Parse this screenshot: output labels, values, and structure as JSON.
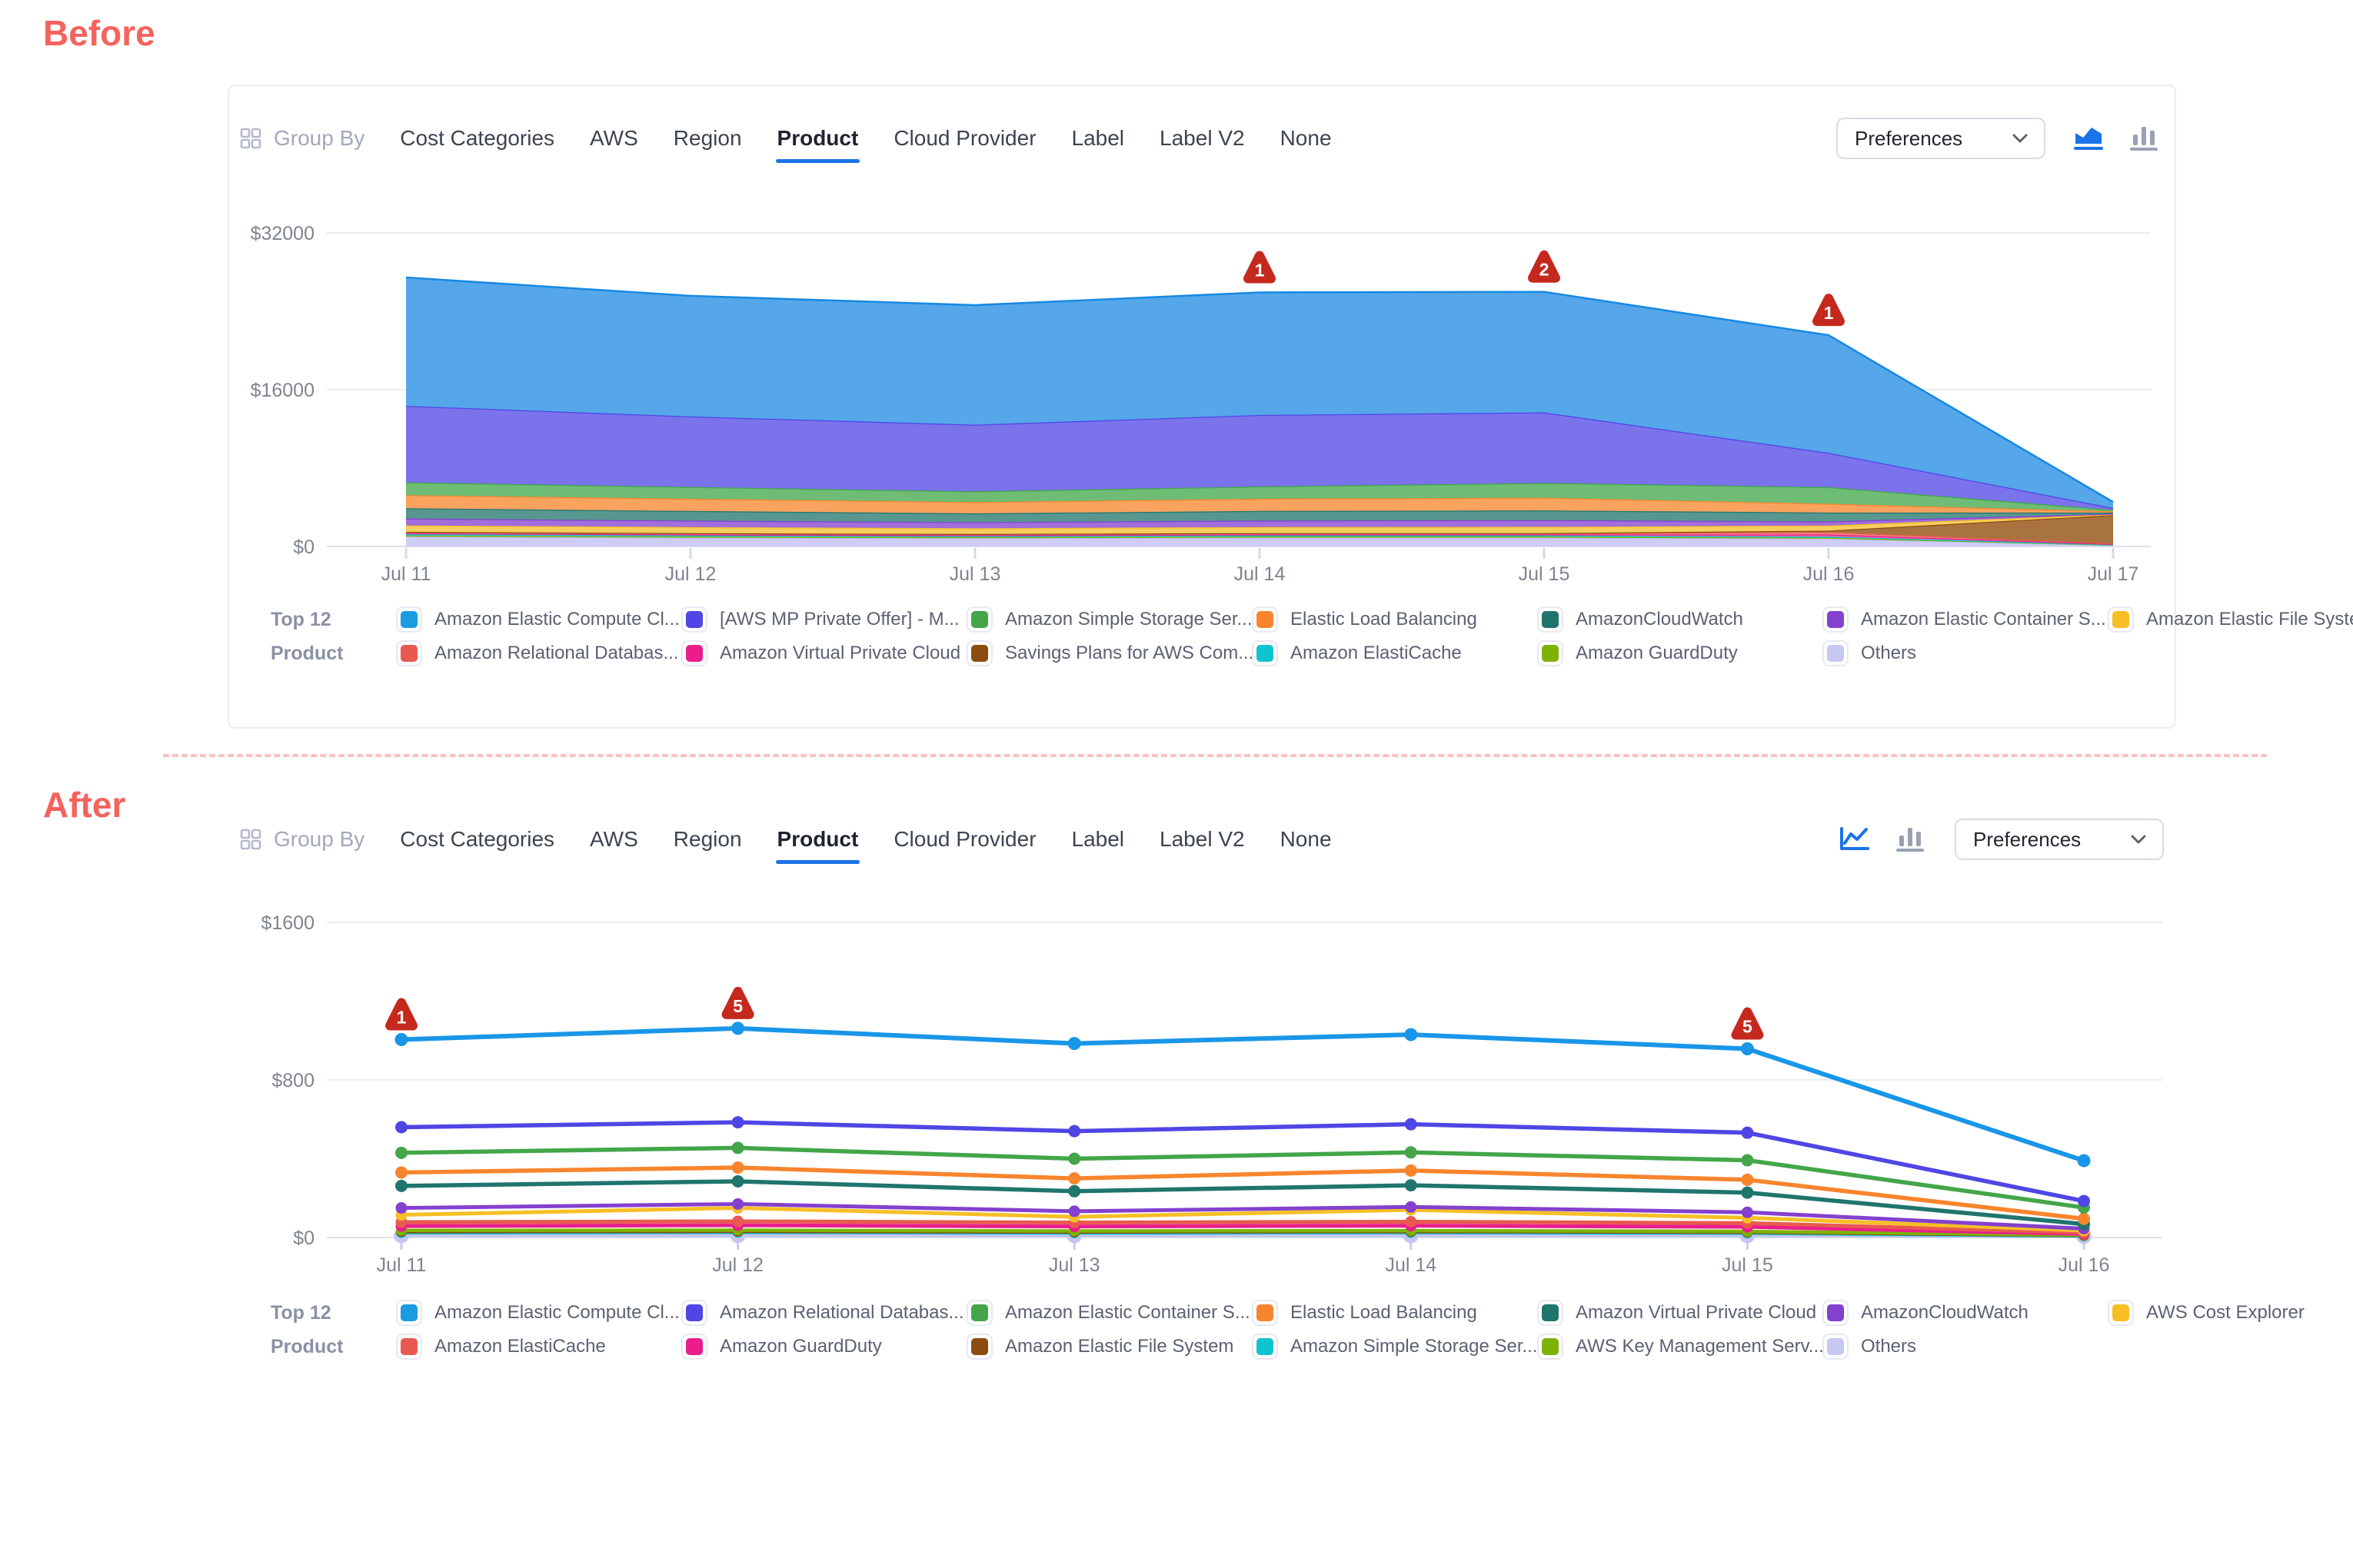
{
  "sections": {
    "before_label": "Before",
    "after_label": "After"
  },
  "toolbar": {
    "group_by_label": "Group By",
    "tabs": [
      "Cost Categories",
      "AWS",
      "Region",
      "Product",
      "Cloud Provider",
      "Label",
      "Label V2",
      "None"
    ],
    "active_tab": "Product",
    "preferences_label": "Preferences"
  },
  "legend_title": {
    "line1": "Top 12",
    "line2": "Product"
  },
  "colors": {
    "accent": "#1a73e8",
    "inactive_icon": "#98a2b3",
    "badge": "#c5291e",
    "divider": "#f9c1c1",
    "title_red": "#f4635d"
  },
  "chart_data": [
    {
      "id": "before",
      "type": "area",
      "stacked": true,
      "x": [
        "Jul 11",
        "Jul 12",
        "Jul 13",
        "Jul 14",
        "Jul 15",
        "Jul 16",
        "Jul 17"
      ],
      "yticks": [
        {
          "label": "$0",
          "value": 0
        },
        {
          "label": "$16000",
          "value": 16000
        },
        {
          "label": "$32000",
          "value": 32000
        }
      ],
      "ylim": [
        0,
        32000
      ],
      "grid": true,
      "legend_position": "bottom",
      "series": [
        {
          "name": "Others",
          "color": "#bdbdf0",
          "fill": "#cdcdf6",
          "values": [
            1000,
            900,
            850,
            900,
            900,
            800,
            150
          ]
        },
        {
          "name": "Amazon GuardDuty",
          "color": "#7eb305",
          "fill": "#9cc43e",
          "values": [
            120,
            110,
            100,
            110,
            110,
            100,
            30
          ]
        },
        {
          "name": "Amazon ElastiCache",
          "color": "#0fc3cf",
          "fill": "#4fd3db",
          "values": [
            130,
            120,
            110,
            120,
            120,
            110,
            30
          ]
        },
        {
          "name": "Amazon Virtual Private Cloud",
          "color": "#e91e8c",
          "fill": "#ef5fae",
          "values": [
            100,
            95,
            90,
            95,
            95,
            220,
            40
          ]
        },
        {
          "name": "Amazon Relational Databas...",
          "color": "#e8594f",
          "fill": "#ee857d",
          "values": [
            150,
            140,
            130,
            140,
            140,
            260,
            50
          ]
        },
        {
          "name": "Savings Plans for AWS Com...",
          "color": "#8a4c0f",
          "fill": "#a9733f",
          "values": [
            0,
            0,
            0,
            0,
            0,
            130,
            2900
          ]
        },
        {
          "name": "Amazon Elastic File System",
          "color": "#f6bf26",
          "fill": "#f8cf5e",
          "values": [
            650,
            620,
            580,
            620,
            640,
            520,
            80
          ]
        },
        {
          "name": "Amazon Elastic Container S...",
          "color": "#8440cf",
          "fill": "#a16edb",
          "values": [
            700,
            660,
            620,
            660,
            680,
            420,
            60
          ]
        },
        {
          "name": "AmazonCloudWatch",
          "color": "#20756d",
          "fill": "#579790",
          "values": [
            1050,
            980,
            900,
            980,
            1000,
            900,
            120
          ]
        },
        {
          "name": "Elastic Load Balancing",
          "color": "#f8852d",
          "fill": "#f9a35f",
          "values": [
            1350,
            1250,
            1150,
            1250,
            1300,
            900,
            130
          ]
        },
        {
          "name": "Amazon Simple Storage Ser...",
          "color": "#43a649",
          "fill": "#6fbc74",
          "values": [
            1300,
            1200,
            1100,
            1250,
            1500,
            1700,
            150
          ]
        },
        {
          "name": "[AWS MP Private Offer] - M...",
          "color": "#4f46e5",
          "fill": "#7a73ec",
          "values": [
            7800,
            7200,
            6800,
            7300,
            7200,
            3500,
            200
          ]
        },
        {
          "name": "Amazon Elastic Compute Cl...",
          "color": "#1788e2",
          "fill": "#55a7ea",
          "values": [
            13100,
            12300,
            12200,
            12500,
            12300,
            12000,
            600
          ]
        }
      ],
      "annotations": [
        {
          "day": 3,
          "count": 1
        },
        {
          "day": 4,
          "count": 2
        },
        {
          "day": 5,
          "count": 1
        }
      ],
      "legend": [
        {
          "label": "Amazon Elastic Compute Cl...",
          "color": "#1a9ce1"
        },
        {
          "label": "[AWS MP Private Offer] - M...",
          "color": "#4f46e5"
        },
        {
          "label": "Amazon Simple Storage Ser...",
          "color": "#43a649"
        },
        {
          "label": "Elastic Load Balancing",
          "color": "#f8852d"
        },
        {
          "label": "AmazonCloudWatch",
          "color": "#20756d"
        },
        {
          "label": "Amazon Elastic Container S...",
          "color": "#8440cf"
        },
        {
          "label": "Amazon Elastic File System",
          "color": "#f6bf26"
        },
        {
          "label": "Amazon Relational Databas...",
          "color": "#e8594f"
        },
        {
          "label": "Amazon Virtual Private Cloud",
          "color": "#e91e8c"
        },
        {
          "label": "Savings Plans for AWS Com...",
          "color": "#8a4c0f"
        },
        {
          "label": "Amazon ElastiCache",
          "color": "#0fc3cf"
        },
        {
          "label": "Amazon GuardDuty",
          "color": "#7eb305"
        },
        {
          "label": "Others",
          "color": "#c7c7f3"
        }
      ]
    },
    {
      "id": "after",
      "type": "line",
      "stacked": false,
      "x": [
        "Jul 11",
        "Jul 12",
        "Jul 13",
        "Jul 14",
        "Jul 15",
        "Jul 16"
      ],
      "yticks": [
        {
          "label": "$0",
          "value": 0
        },
        {
          "label": "$800",
          "value": 800
        },
        {
          "label": "$1600",
          "value": 1600
        }
      ],
      "ylim": [
        0,
        1600
      ],
      "grid": true,
      "legend_position": "bottom",
      "series": [
        {
          "name": "Others",
          "color": "#c5c5f1",
          "values": [
            10,
            10,
            10,
            10,
            10,
            6
          ],
          "w": 4.5,
          "r": 10
        },
        {
          "name": "Amazon Simple Storage Ser...",
          "color": "#0fc3cf",
          "values": [
            24,
            26,
            23,
            25,
            22,
            8
          ],
          "w": 4.5,
          "r": 7
        },
        {
          "name": "Amazon Elastic File System",
          "color": "#8a4c0f",
          "values": [
            30,
            31,
            28,
            30,
            27,
            10
          ],
          "w": 4.5,
          "r": 7
        },
        {
          "name": "AWS Key Management Serv...",
          "color": "#7eb305",
          "values": [
            36,
            37,
            33,
            35,
            31,
            12
          ],
          "w": 4.5,
          "r": 7
        },
        {
          "name": "Amazon GuardDuty",
          "color": "#e91e8c",
          "values": [
            58,
            62,
            56,
            60,
            54,
            18
          ],
          "w": 5,
          "r": 7.5
        },
        {
          "name": "Amazon ElastiCache",
          "color": "#e8594f",
          "values": [
            78,
            82,
            76,
            80,
            73,
            25
          ],
          "w": 5,
          "r": 7.5
        },
        {
          "name": "AWS Cost Explorer",
          "color": "#f6bf26",
          "values": [
            115,
            150,
            105,
            140,
            100,
            35
          ],
          "w": 5,
          "r": 7.5
        },
        {
          "name": "AmazonCloudWatch",
          "color": "#8440cf",
          "values": [
            150,
            170,
            133,
            155,
            128,
            45
          ],
          "w": 5,
          "r": 7.5
        },
        {
          "name": "Amazon Virtual Private Cloud",
          "color": "#20756d",
          "values": [
            262,
            285,
            235,
            265,
            228,
            68
          ],
          "w": 5.5,
          "r": 8
        },
        {
          "name": "Elastic Load Balancing",
          "color": "#f8852d",
          "values": [
            330,
            355,
            300,
            340,
            293,
            95
          ],
          "w": 5.5,
          "r": 8
        },
        {
          "name": "Amazon Elastic Container S...",
          "color": "#43a649",
          "values": [
            430,
            455,
            400,
            432,
            392,
            152
          ],
          "w": 5.5,
          "r": 8
        },
        {
          "name": "Amazon Relational Databas...",
          "color": "#4f46e5",
          "values": [
            560,
            585,
            540,
            575,
            532,
            185
          ],
          "w": 5.5,
          "r": 8
        },
        {
          "name": "Amazon Elastic Compute Cl...",
          "color": "#1a96e8",
          "values": [
            1005,
            1062,
            985,
            1030,
            958,
            390
          ],
          "w": 6,
          "r": 8.5
        }
      ],
      "annotations": [
        {
          "day": 0,
          "count": 1
        },
        {
          "day": 1,
          "count": 5
        },
        {
          "day": 4,
          "count": 5
        }
      ],
      "legend": [
        {
          "label": "Amazon Elastic Compute Cl...",
          "color": "#1a9ce1"
        },
        {
          "label": "Amazon Relational Databas...",
          "color": "#4f46e5"
        },
        {
          "label": "Amazon Elastic Container S...",
          "color": "#43a649"
        },
        {
          "label": "Elastic Load Balancing",
          "color": "#f8852d"
        },
        {
          "label": "Amazon Virtual Private Cloud",
          "color": "#20756d"
        },
        {
          "label": "AmazonCloudWatch",
          "color": "#8440cf"
        },
        {
          "label": "AWS Cost Explorer",
          "color": "#f6bf26"
        },
        {
          "label": "Amazon ElastiCache",
          "color": "#e8594f"
        },
        {
          "label": "Amazon GuardDuty",
          "color": "#e91e8c"
        },
        {
          "label": "Amazon Elastic File System",
          "color": "#8a4c0f"
        },
        {
          "label": "Amazon Simple Storage Ser...",
          "color": "#0fc3cf"
        },
        {
          "label": "AWS Key Management Serv...",
          "color": "#7eb305"
        },
        {
          "label": "Others",
          "color": "#c7c7f3"
        }
      ]
    }
  ]
}
